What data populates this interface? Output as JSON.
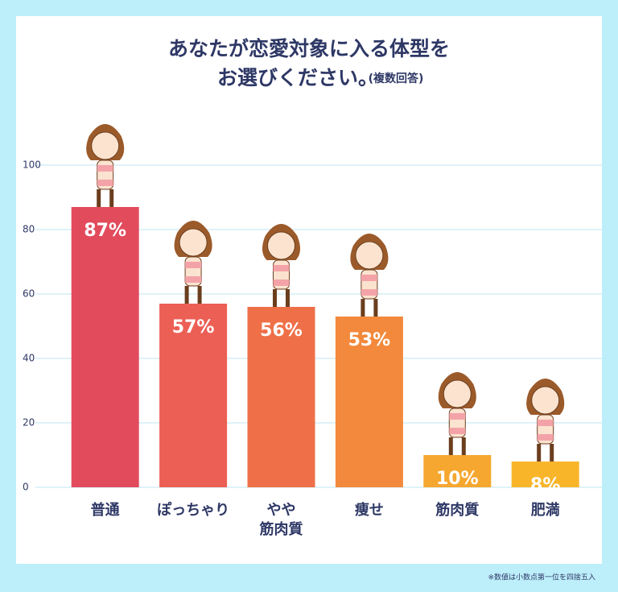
{
  "chart_data": {
    "type": "bar",
    "title": [
      "あなたが恋愛対象に入る体型を",
      "お選びください。"
    ],
    "subtitle": "(複数回答)",
    "categories": [
      "普通",
      "ぽっちゃり",
      "やや\n筋肉質",
      "痩せ",
      "筋肉質",
      "肥満"
    ],
    "values": [
      87,
      57,
      56,
      53,
      10,
      8
    ],
    "value_labels": [
      "87%",
      "57%",
      "56%",
      "53%",
      "10%",
      "8%"
    ],
    "colors": [
      "#e24b5c",
      "#ec5f55",
      "#ef7048",
      "#f2893c",
      "#f6a730",
      "#f9b52a"
    ],
    "ylim": [
      0,
      100
    ],
    "yticks": [
      0,
      20,
      40,
      60,
      80,
      100
    ],
    "grid": true,
    "footnote": "※数値は小数点第一位を四捨五入"
  }
}
